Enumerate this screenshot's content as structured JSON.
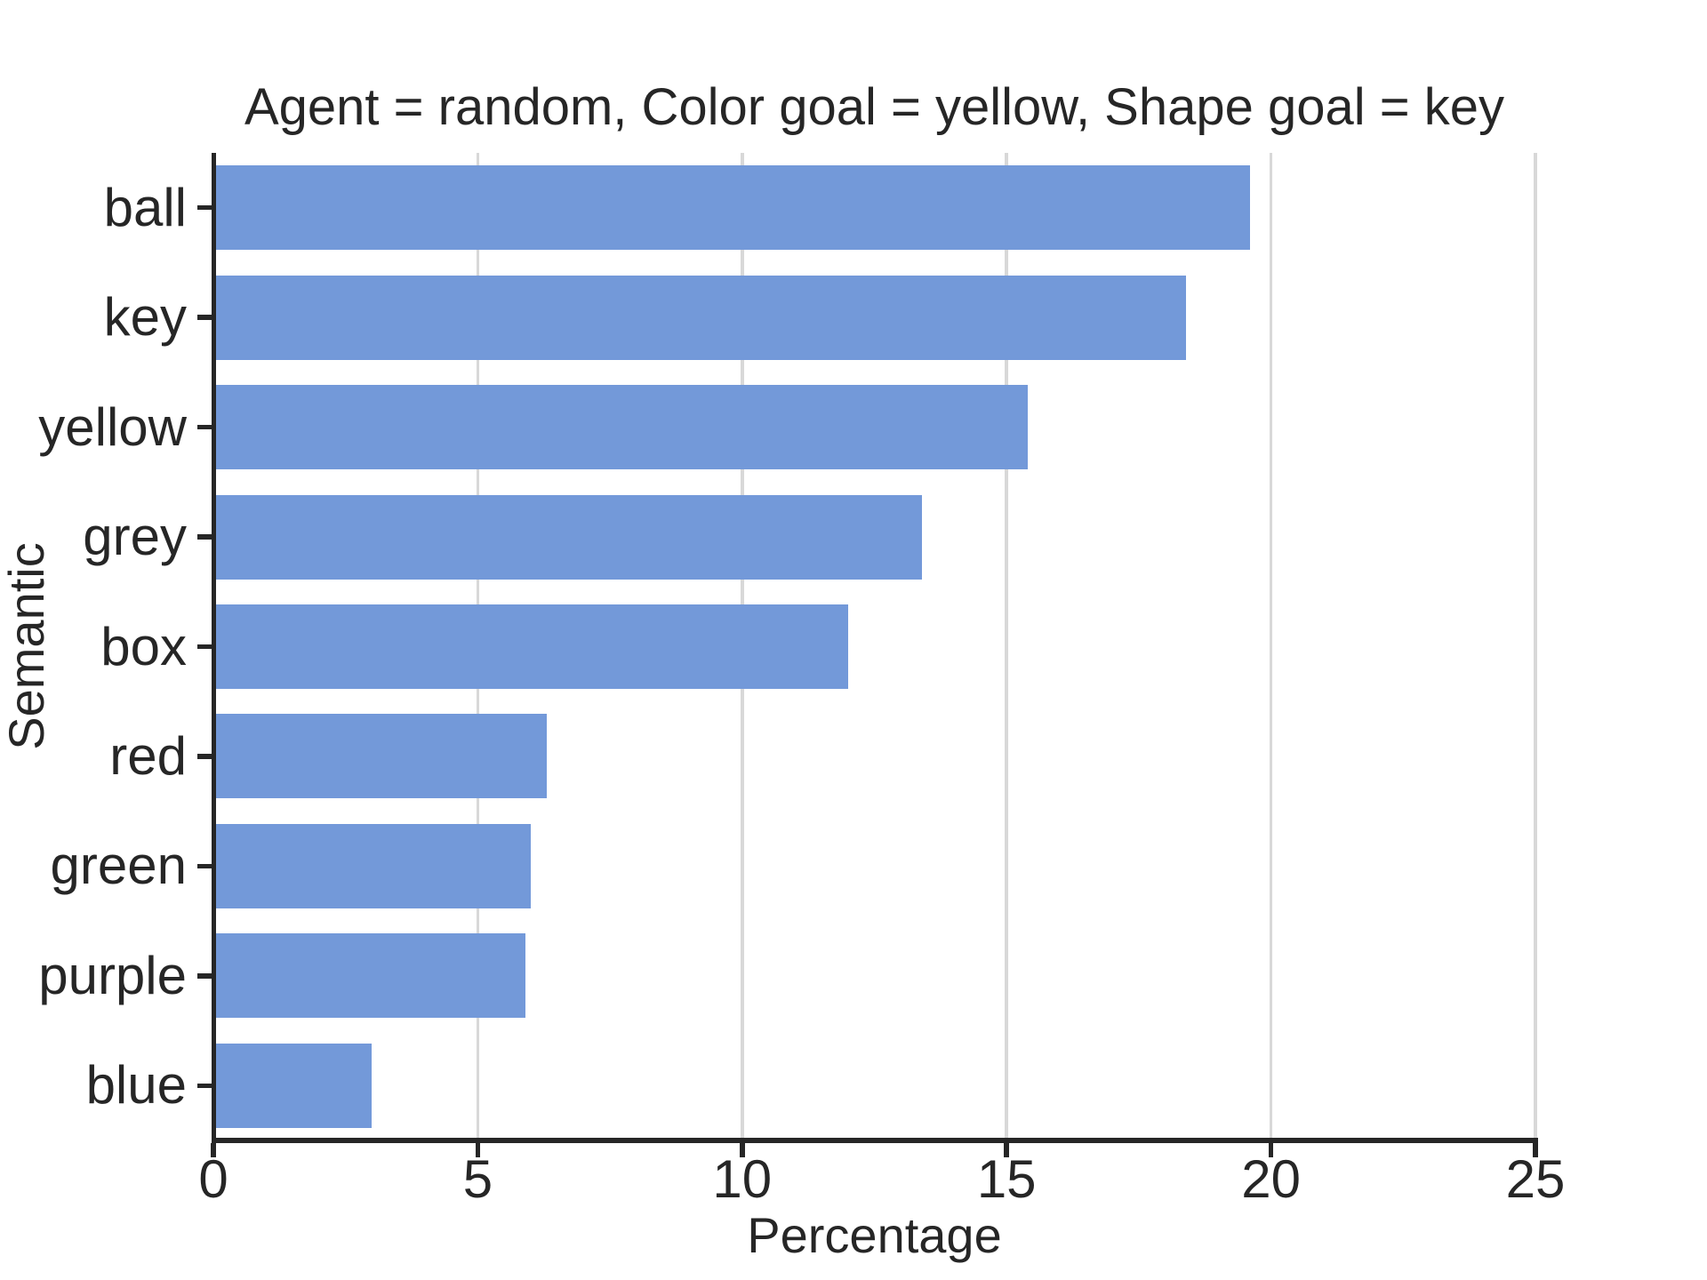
{
  "figure": {
    "background": "#ffffff"
  },
  "chart_data": {
    "type": "bar",
    "orientation": "horizontal",
    "title": "Agent = random, Color goal = yellow, Shape goal = key",
    "xlabel": "Percentage",
    "ylabel": "Semantic",
    "categories": [
      "ball",
      "key",
      "yellow",
      "grey",
      "box",
      "red",
      "green",
      "purple",
      "blue"
    ],
    "values": [
      19.6,
      18.4,
      15.4,
      13.4,
      12.0,
      6.3,
      6.0,
      5.9,
      3.0
    ],
    "xlim": [
      0,
      25
    ],
    "xticks": [
      0,
      5,
      10,
      15,
      20,
      25
    ],
    "grid": "vertical",
    "legend": "none",
    "style": {
      "bar_color": "#7399d9",
      "grid_color": "#d8d8d8",
      "spine_color": "#262626",
      "text_color": "#262626"
    }
  }
}
